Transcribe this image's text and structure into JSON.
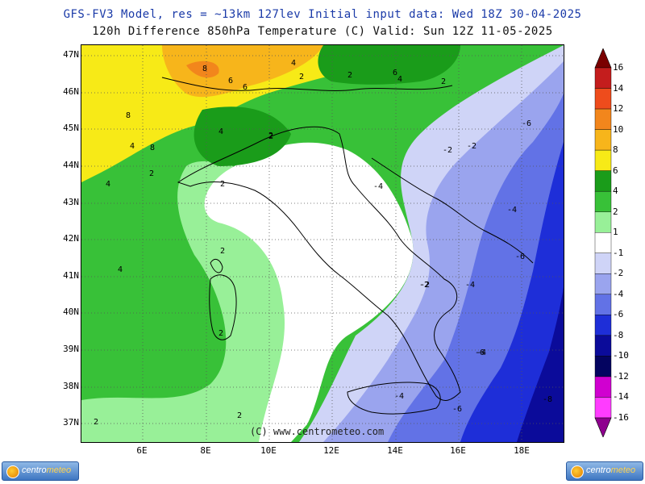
{
  "header": {
    "line1": "GFS-FV3 Model, res = ~13km 127lev   Initial input data: Wed 18Z 30-04-2025",
    "line2": "120h Difference 850hPa Temperature (C)  Valid: Sun 12Z 11-05-2025"
  },
  "copyright": "(C) www.centrometeo.com",
  "lat_labels": [
    "47N",
    "46N",
    "45N",
    "44N",
    "43N",
    "42N",
    "41N",
    "40N",
    "39N",
    "38N",
    "37N"
  ],
  "lon_labels": [
    "6E",
    "8E",
    "10E",
    "12E",
    "14E",
    "16E",
    "18E"
  ],
  "colorbar": {
    "labels": [
      "16",
      "14",
      "12",
      "10",
      "8",
      "6",
      "4",
      "2",
      "1",
      "-1",
      "-2",
      "-4",
      "-6",
      "-8",
      "-10",
      "-12",
      "-14",
      "-16"
    ],
    "colors": [
      "#7a0000",
      "#c41d1d",
      "#ee4c1c",
      "#f2861c",
      "#f7b51b",
      "#f7ea17",
      "#1a9c1a",
      "#38c138",
      "#98f098",
      "#ffffff",
      "#cfd4f7",
      "#9aa4ee",
      "#6272e6",
      "#1e2ed8",
      "#0b0b9a",
      "#040460",
      "#d000d0",
      "#ff3cff",
      "#8e008e"
    ]
  },
  "contour_labels": [
    "8",
    "8",
    "8",
    "6",
    "4",
    "4",
    "2",
    "2",
    "6",
    "6",
    "4",
    "2",
    "4",
    "4",
    "2",
    "2",
    "2",
    "2",
    "4",
    "2",
    "-2",
    "-2",
    "-2",
    "-6",
    "-4",
    "-4",
    "-6",
    "-4",
    "-2",
    "-4",
    "-6",
    "-4",
    "-6",
    "-8",
    "2",
    "2",
    "2"
  ],
  "logos": {
    "brand_a": "centro",
    "brand_b": "meteo"
  }
}
